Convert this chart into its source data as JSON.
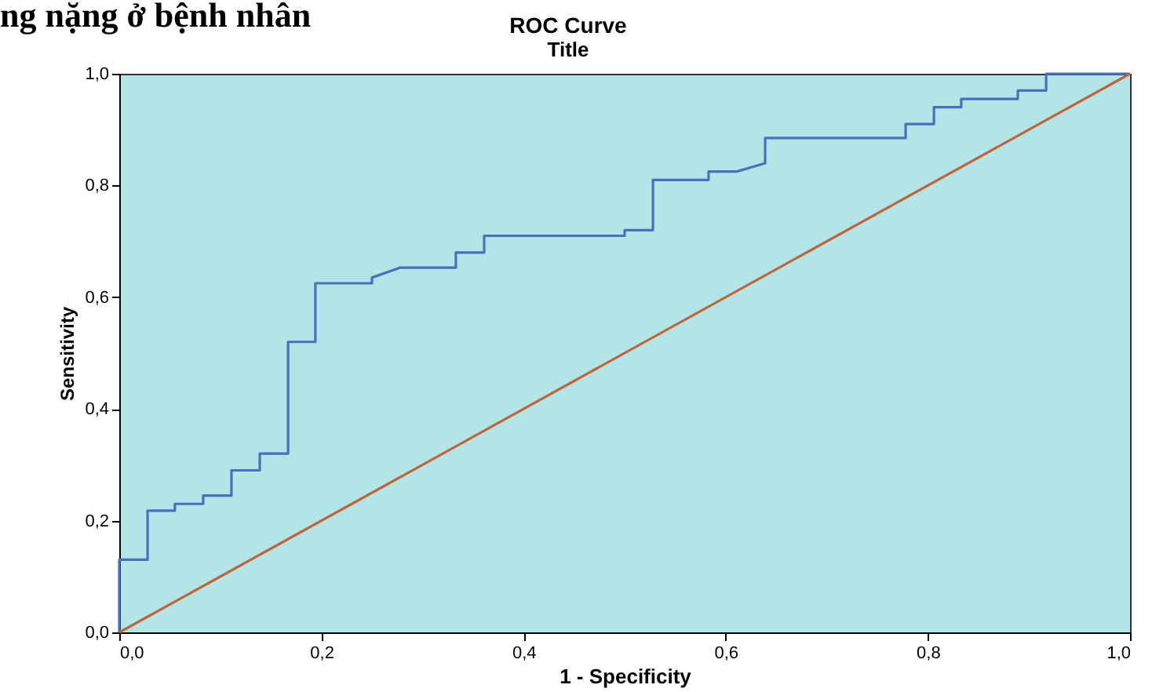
{
  "chart_data": {
    "type": "line",
    "title": "ROC Curve",
    "subtitle": "Title",
    "xlabel": "1 - Specificity",
    "ylabel": "Sensitivity",
    "annotations": [
      "ng nặng ở bệnh nhân"
    ],
    "xlim": [
      0,
      1
    ],
    "ylim": [
      0,
      1
    ],
    "xticks": [
      {
        "value": 0,
        "label": "0,0"
      },
      {
        "value": 0.2,
        "label": "0,2"
      },
      {
        "value": 0.4,
        "label": "0,4"
      },
      {
        "value": 0.6,
        "label": "0,6"
      },
      {
        "value": 0.8,
        "label": "0,8"
      },
      {
        "value": 1,
        "label": "1,0"
      }
    ],
    "yticks": [
      {
        "value": 0,
        "label": "0,0"
      },
      {
        "value": 0.2,
        "label": "0,2"
      },
      {
        "value": 0.4,
        "label": "0,4"
      },
      {
        "value": 0.6,
        "label": "0,6"
      },
      {
        "value": 0.8,
        "label": "0,8"
      },
      {
        "value": 1,
        "label": "1,0"
      }
    ],
    "grid": false,
    "marker": "none",
    "line_style": "solid",
    "series": [
      {
        "color": "#4a6fbf",
        "x": [
          0,
          0,
          0.028,
          0.028,
          0.055,
          0.055,
          0.083,
          0.083,
          0.111,
          0.111,
          0.139,
          0.139,
          0.167,
          0.167,
          0.194,
          0.194,
          0.25,
          0.25,
          0.278,
          0.333,
          0.333,
          0.361,
          0.361,
          0.5,
          0.5,
          0.528,
          0.528,
          0.583,
          0.583,
          0.611,
          0.639,
          0.639,
          0.778,
          0.778,
          0.806,
          0.806,
          0.833,
          0.833,
          0.889,
          0.889,
          0.917,
          0.917,
          1
        ],
        "values": [
          0,
          0.13,
          0.13,
          0.218,
          0.218,
          0.23,
          0.23,
          0.245,
          0.245,
          0.29,
          0.29,
          0.32,
          0.32,
          0.52,
          0.52,
          0.625,
          0.625,
          0.635,
          0.653,
          0.653,
          0.68,
          0.68,
          0.71,
          0.71,
          0.72,
          0.72,
          0.81,
          0.81,
          0.825,
          0.825,
          0.84,
          0.885,
          0.885,
          0.91,
          0.91,
          0.94,
          0.94,
          0.955,
          0.955,
          0.97,
          0.97,
          1,
          1
        ]
      },
      {
        "color": "#c0643c",
        "x": [
          0,
          1
        ],
        "values": [
          0,
          1
        ]
      }
    ]
  }
}
